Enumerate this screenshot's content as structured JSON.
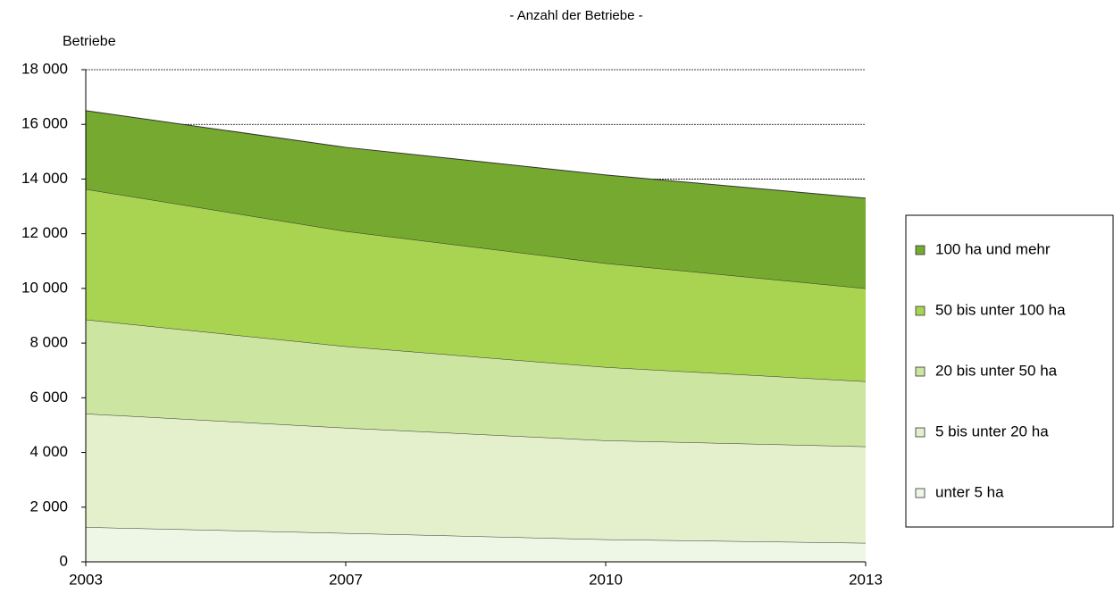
{
  "chart_data": {
    "type": "stacked_area",
    "title": "- Anzahl der Betriebe -",
    "y_label": "Betriebe",
    "categories": [
      "2003",
      "2007",
      "2010",
      "2013"
    ],
    "series": [
      {
        "name": "unter 5 ha",
        "color": "#eef7e6",
        "values": [
          1270,
          1050,
          820,
          690
        ]
      },
      {
        "name": "5 bis unter 20 ha",
        "color": "#e3f0cb",
        "values": [
          4150,
          3850,
          3620,
          3530
        ]
      },
      {
        "name": "20 bis unter 50 ha",
        "color": "#cce5a0",
        "values": [
          3440,
          2980,
          2680,
          2380
        ]
      },
      {
        "name": "50 bis unter 100 ha",
        "color": "#a9d451",
        "values": [
          4770,
          4210,
          3800,
          3400
        ]
      },
      {
        "name": "100 ha und mehr",
        "color": "#76a92f",
        "values": [
          2870,
          3070,
          3230,
          3300
        ]
      }
    ],
    "ylim": [
      0,
      18000
    ],
    "yticks": [
      0,
      {
        "value": 2000,
        "label": "2 000"
      },
      {
        "value": 4000,
        "label": "4 000"
      },
      {
        "value": 6000,
        "label": "6 000"
      },
      {
        "value": 8000,
        "label": "8 000"
      },
      {
        "value": 10000,
        "label": "10 000"
      },
      {
        "value": 12000,
        "label": "12 000"
      },
      {
        "value": 14000,
        "label": "14 000"
      },
      {
        "value": 16000,
        "label": "16 000"
      },
      {
        "value": 18000,
        "label": "18 000"
      }
    ],
    "grid": true,
    "legend": "right"
  }
}
